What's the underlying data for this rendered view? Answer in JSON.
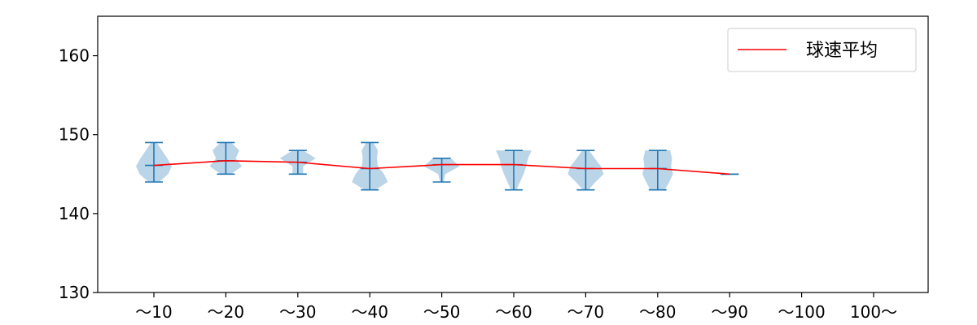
{
  "chart_data": {
    "type": "violin",
    "categories": [
      "～10",
      "～20",
      "～30",
      "～40",
      "～50",
      "～60",
      "～70",
      "～80",
      "～90",
      "～100",
      "100～"
    ],
    "y_ticks": [
      130,
      140,
      150,
      160
    ],
    "ylim": [
      130,
      165
    ],
    "legend": {
      "entries": [
        "球速平均"
      ],
      "placement": "top-right"
    },
    "colors": {
      "violin_fill": "#9ec3de",
      "violin_line": "#1f77b4",
      "mean_line": "#ff0000"
    },
    "series": [
      {
        "name": "球速平均",
        "values": [
          146.1,
          146.7,
          146.5,
          145.7,
          146.2,
          146.2,
          145.7,
          145.7,
          145.0,
          null,
          null
        ]
      }
    ],
    "violins": [
      {
        "category": "～10",
        "min": 144,
        "max": 149,
        "mean": 146.1,
        "profile": [
          [
            144,
            0.3
          ],
          [
            145,
            0.8
          ],
          [
            146,
            1.0
          ],
          [
            147,
            0.75
          ],
          [
            148,
            0.45
          ],
          [
            149,
            0.15
          ]
        ]
      },
      {
        "category": "～20",
        "min": 145,
        "max": 149,
        "mean": 146.7,
        "profile": [
          [
            145,
            0.3
          ],
          [
            146,
            0.9
          ],
          [
            147,
            0.55
          ],
          [
            148,
            0.75
          ],
          [
            149,
            0.3
          ]
        ]
      },
      {
        "category": "～30",
        "min": 145,
        "max": 148,
        "mean": 146.5,
        "profile": [
          [
            145,
            0.3
          ],
          [
            146,
            0.3
          ],
          [
            147,
            1.0
          ],
          [
            148,
            0.3
          ]
        ]
      },
      {
        "category": "～40",
        "min": 143,
        "max": 149,
        "mean": 145.7,
        "profile": [
          [
            143,
            0.3
          ],
          [
            144,
            1.0
          ],
          [
            145,
            0.8
          ],
          [
            146,
            0.45
          ],
          [
            147,
            0.4
          ],
          [
            148,
            0.45
          ],
          [
            149,
            0.2
          ]
        ]
      },
      {
        "category": "～50",
        "min": 144,
        "max": 147,
        "mean": 146.2,
        "profile": [
          [
            144,
            0.1
          ],
          [
            145,
            0.2
          ],
          [
            146,
            1.0
          ],
          [
            147,
            0.5
          ]
        ]
      },
      {
        "category": "～60",
        "min": 143,
        "max": 148,
        "mean": 146.2,
        "profile": [
          [
            143,
            0.15
          ],
          [
            144,
            0.35
          ],
          [
            145,
            0.55
          ],
          [
            146,
            0.7
          ],
          [
            147,
            0.8
          ],
          [
            148,
            1.0
          ]
        ]
      },
      {
        "category": "～70",
        "min": 143,
        "max": 148,
        "mean": 145.7,
        "profile": [
          [
            143,
            0.15
          ],
          [
            144,
            0.55
          ],
          [
            145,
            1.0
          ],
          [
            146,
            0.85
          ],
          [
            147,
            0.5
          ],
          [
            148,
            0.2
          ]
        ]
      },
      {
        "category": "～80",
        "min": 143,
        "max": 148,
        "mean": 145.7,
        "profile": [
          [
            143,
            0.4
          ],
          [
            144,
            0.65
          ],
          [
            145,
            0.85
          ],
          [
            146,
            0.75
          ],
          [
            147,
            0.8
          ],
          [
            148,
            0.7
          ]
        ]
      },
      {
        "category": "～90",
        "min": 145,
        "max": 145,
        "mean": 145.0,
        "profile": []
      }
    ]
  }
}
